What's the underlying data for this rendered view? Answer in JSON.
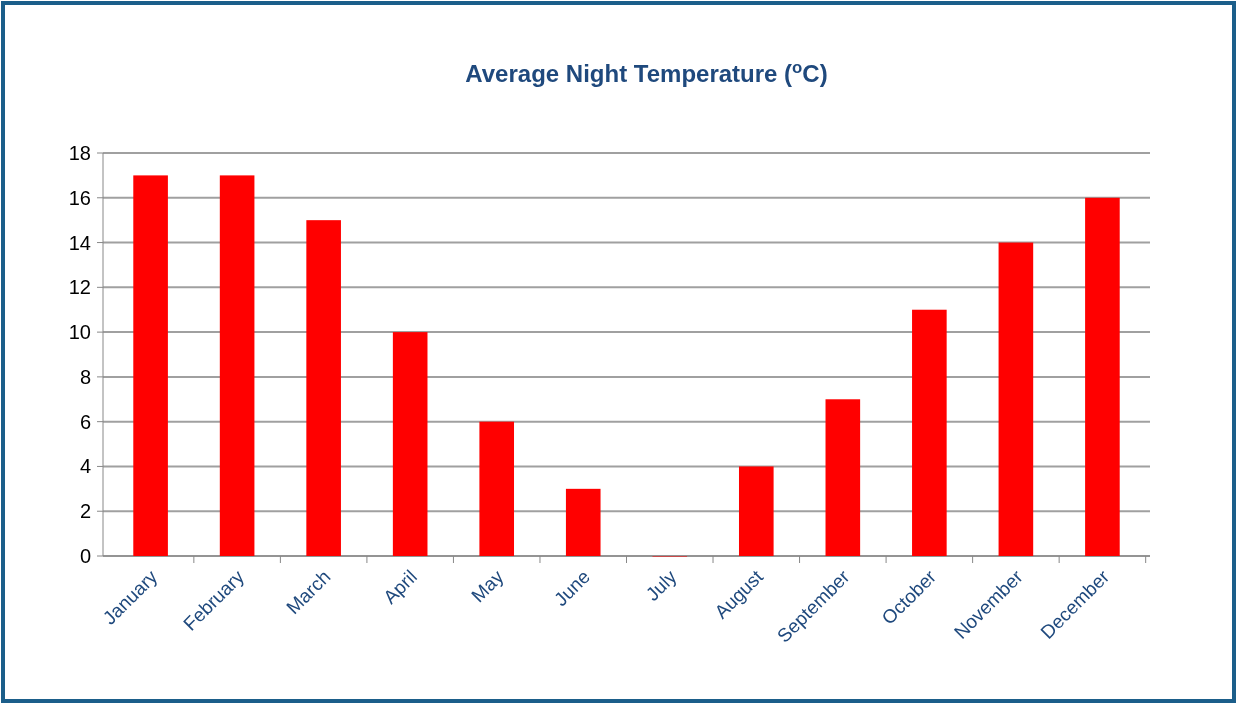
{
  "chart_data": {
    "type": "bar",
    "title": "Average  Night Temperature ($^{o}$C)",
    "categories": [
      "January",
      "February",
      "March",
      "April",
      "May",
      "June",
      "July",
      "August",
      "September",
      "October",
      "November",
      "December"
    ],
    "values": [
      17,
      17,
      15,
      10,
      6,
      3,
      0,
      4,
      7,
      11,
      14,
      16
    ],
    "color": "#ff0000",
    "ylim": [
      0,
      18
    ],
    "yticks": [
      0,
      2,
      4,
      6,
      8,
      10,
      12,
      14,
      16,
      18
    ],
    "grid": "y"
  }
}
